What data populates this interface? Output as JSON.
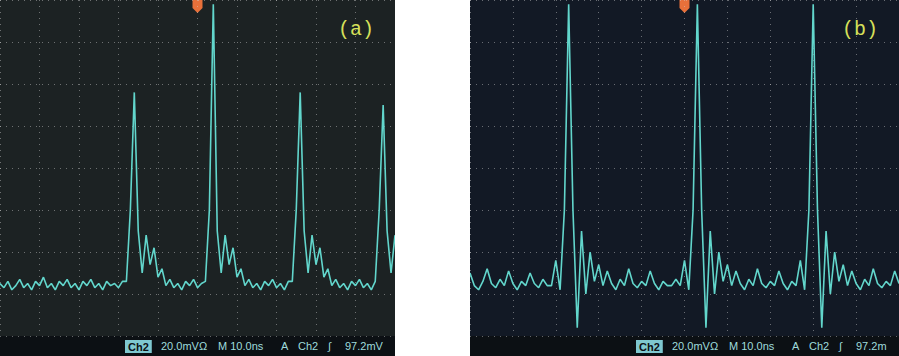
{
  "chart_data": [
    {
      "type": "line",
      "title": "(a)",
      "x": [
        -50,
        -49,
        -48,
        -47,
        -46,
        -45,
        -44,
        -43,
        -42,
        -41,
        -40,
        -39,
        -38,
        -37,
        -36,
        -35,
        -34,
        -33,
        -32,
        -31,
        -30,
        -29,
        -28,
        -27,
        -26,
        -25,
        -24,
        -23,
        -22,
        -21,
        -20,
        -19,
        -18,
        -17,
        -16,
        -15,
        -14,
        -13,
        -12,
        -11,
        -10,
        -9,
        -8,
        -7,
        -6,
        -5,
        -4,
        -3,
        -2,
        -1,
        0,
        1,
        2,
        3,
        4,
        5,
        6,
        7,
        8,
        9,
        10,
        11,
        12,
        13,
        14,
        15,
        16,
        17,
        18,
        19,
        20,
        21,
        22,
        23,
        24,
        25,
        26,
        27,
        28,
        29,
        30,
        31,
        32,
        33,
        34,
        35,
        36,
        37,
        38,
        39,
        40,
        41,
        42,
        43,
        44,
        45,
        46,
        47,
        48,
        49,
        50
      ],
      "series": [
        {
          "color": "#62d6cc",
          "values": [
            -55,
            -57,
            -54,
            -58,
            -56,
            -53,
            -57,
            -55,
            -58,
            -54,
            -56,
            -52,
            -57,
            -55,
            -58,
            -54,
            -56,
            -53,
            -57,
            -55,
            -58,
            -54,
            -56,
            -53,
            -57,
            -55,
            -58,
            -54,
            -56,
            -55,
            -57,
            -54,
            -54,
            -20,
            36,
            -30,
            -50,
            -32,
            -46,
            -38,
            -52,
            -48,
            -56,
            -53,
            -57,
            -55,
            -58,
            -54,
            -56,
            -53,
            -57,
            -55,
            -54,
            -20,
            78,
            -30,
            -50,
            -32,
            -46,
            -38,
            -52,
            -48,
            -56,
            -53,
            -57,
            -55,
            -58,
            -54,
            -56,
            -53,
            -57,
            -55,
            -58,
            -54,
            -54,
            -20,
            36,
            -30,
            -50,
            -32,
            -46,
            -38,
            -52,
            -48,
            -56,
            -53,
            -57,
            -55,
            -58,
            -54,
            -56,
            -53,
            -57,
            -55,
            -58,
            -54,
            -20,
            30,
            -30,
            -50,
            -32
          ]
        }
      ],
      "xlim": [
        -50,
        50
      ],
      "xticks": [
        -50,
        -40,
        -30,
        -20,
        -10,
        0,
        10,
        20,
        30,
        40,
        50
      ],
      "ylim": [
        -80,
        80
      ],
      "yticks": [
        -80,
        -60,
        -40,
        -20,
        0,
        20,
        40,
        60,
        80
      ],
      "grid": true,
      "tick_labels": false,
      "annotations": [
        "Ch2",
        "20.0mVΩ",
        "M 10.0ns",
        "A",
        "Ch2",
        "∫",
        "97.2mV"
      ]
    },
    {
      "type": "line",
      "title": "(b)",
      "x": [
        -50,
        -49,
        -48,
        -47,
        -46,
        -45,
        -44,
        -43,
        -42,
        -41,
        -40,
        -39,
        -38,
        -37,
        -36,
        -35,
        -34,
        -33,
        -32,
        -31,
        -30,
        -29,
        -28,
        -27,
        -26,
        -25,
        -24,
        -23,
        -22,
        -21,
        -20,
        -19,
        -18,
        -17,
        -16,
        -15,
        -14,
        -13,
        -12,
        -11,
        -10,
        -9,
        -8,
        -7,
        -6,
        -5,
        -4,
        -3,
        -2,
        -1,
        0,
        1,
        2,
        3,
        4,
        5,
        6,
        7,
        8,
        9,
        10,
        11,
        12,
        13,
        14,
        15,
        16,
        17,
        18,
        19,
        20,
        21,
        22,
        23,
        24,
        25,
        26,
        27,
        28,
        29,
        30,
        31,
        32,
        33,
        34,
        35,
        36,
        37,
        38,
        39,
        40,
        41,
        42,
        43,
        44,
        45,
        46,
        47,
        48,
        49,
        50
      ],
      "series": [
        {
          "color": "#62d6cc",
          "values": [
            -50,
            -56,
            -58,
            -54,
            -48,
            -55,
            -57,
            -53,
            -56,
            -49,
            -55,
            -58,
            -54,
            -56,
            -50,
            -55,
            -57,
            -53,
            -56,
            -56,
            -44,
            -58,
            -20,
            78,
            -20,
            -76,
            -30,
            -60,
            -40,
            -54,
            -46,
            -56,
            -49,
            -55,
            -58,
            -53,
            -56,
            -48,
            -55,
            -57,
            -54,
            -56,
            -49,
            -55,
            -58,
            -54,
            -56,
            -56,
            -53,
            -56,
            -44,
            -58,
            -20,
            78,
            -20,
            -76,
            -30,
            -60,
            -40,
            -54,
            -46,
            -56,
            -49,
            -55,
            -58,
            -53,
            -56,
            -48,
            -55,
            -57,
            -54,
            -56,
            -49,
            -55,
            -58,
            -54,
            -56,
            -44,
            -58,
            -20,
            78,
            -20,
            -76,
            -30,
            -60,
            -40,
            -54,
            -46,
            -56,
            -49,
            -55,
            -58,
            -53,
            -56,
            -48,
            -55,
            -57,
            -54,
            -56,
            -49,
            -55
          ]
        }
      ],
      "xlim": [
        -50,
        50
      ],
      "xticks": [
        -50,
        -40,
        -30,
        -20,
        -10,
        0,
        10,
        20,
        30,
        40,
        50
      ],
      "ylim": [
        -80,
        80
      ],
      "yticks": [
        -80,
        -60,
        -40,
        -20,
        0,
        20,
        40,
        60,
        80
      ],
      "grid": true,
      "tick_labels": false,
      "annotations": [
        "Ch2",
        "20.0mVΩ",
        "M 10.0ns",
        "A",
        "Ch2",
        "∫",
        "97.2m"
      ]
    }
  ]
}
